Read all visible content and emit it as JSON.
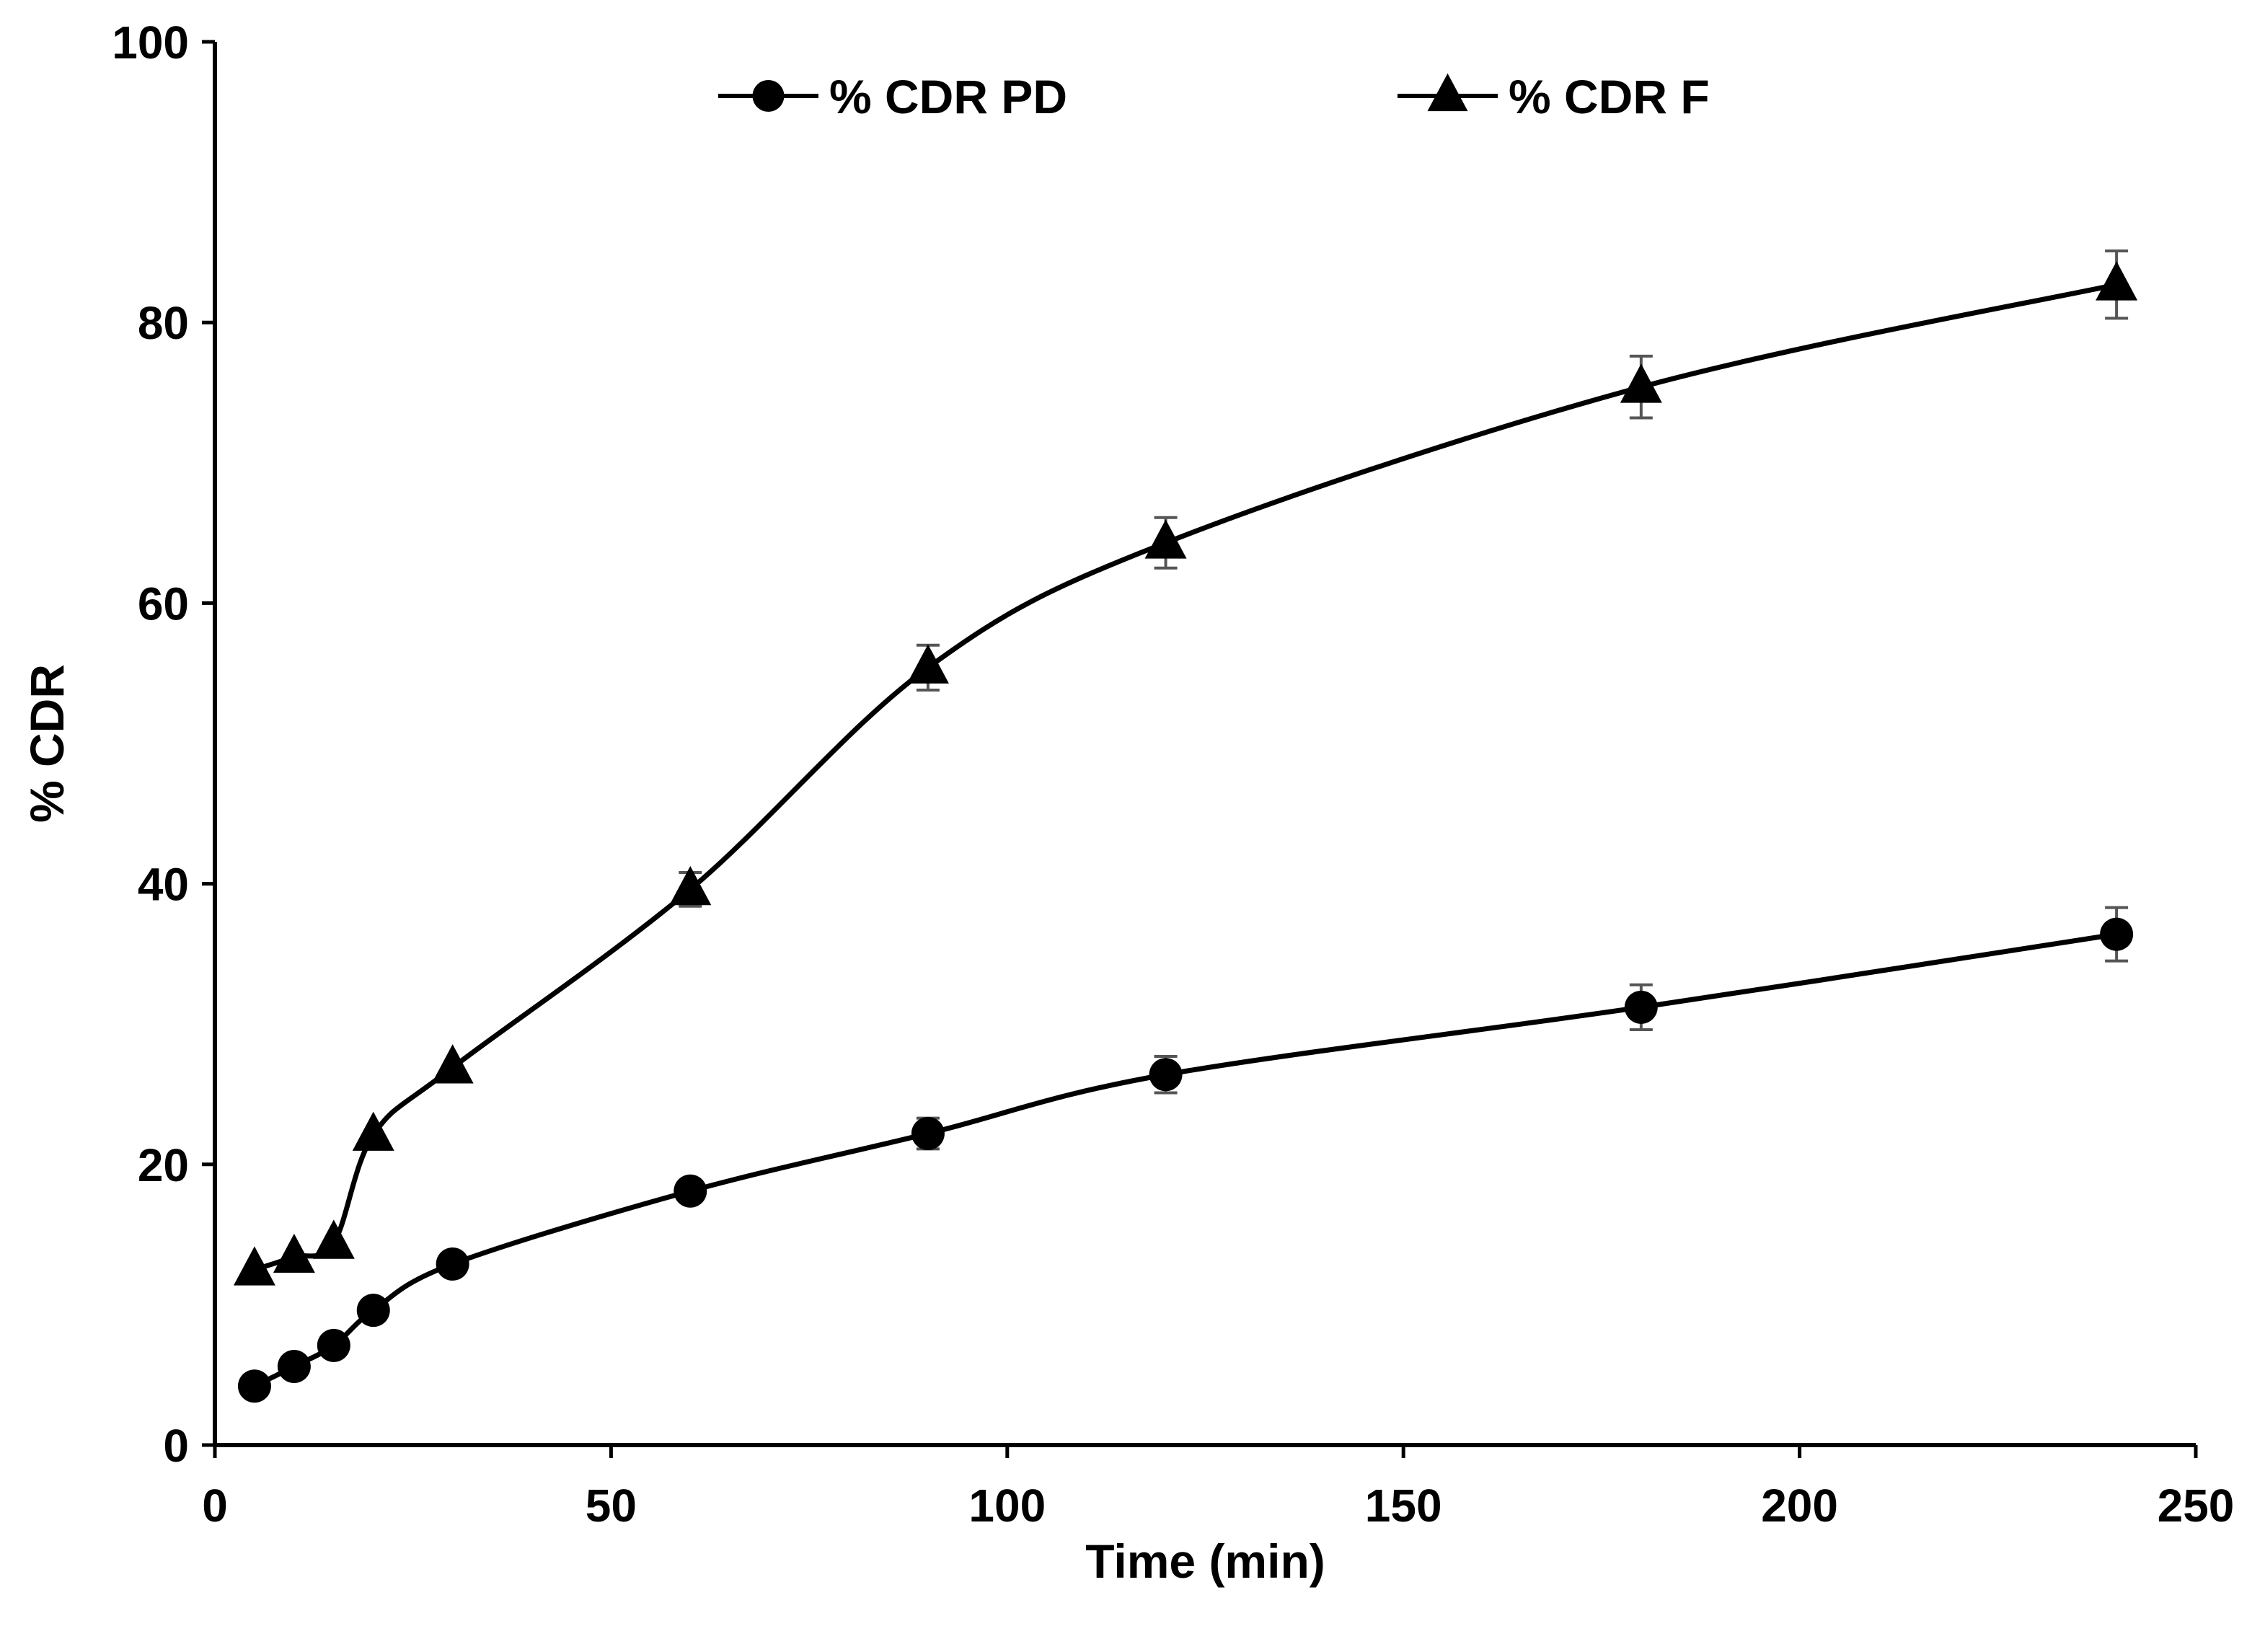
{
  "chart_data": {
    "type": "line",
    "title": "",
    "xlabel": "Time (min)",
    "ylabel": "% CDR",
    "xlim": [
      0,
      250
    ],
    "ylim": [
      0,
      100
    ],
    "xticks": [
      0,
      50,
      100,
      150,
      200,
      250
    ],
    "yticks": [
      0,
      20,
      40,
      60,
      80,
      100
    ],
    "xtick_labels": [
      "0",
      "50",
      "100",
      "150",
      "200",
      "250"
    ],
    "ytick_labels": [
      "0",
      "20",
      "40",
      "60",
      "80",
      "100"
    ],
    "grid": false,
    "legend_position": "top",
    "x": [
      5,
      10,
      15,
      20,
      30,
      60,
      90,
      120,
      180,
      240
    ],
    "series": [
      {
        "name": "% CDR PD",
        "marker": "circle",
        "color": "#000000",
        "values": [
          4.2,
          5.6,
          7.1,
          9.6,
          12.9,
          18.1,
          22.2,
          26.4,
          31.2,
          36.4
        ],
        "errors": [
          0,
          0,
          0,
          0,
          0,
          0,
          1.1,
          1.3,
          1.6,
          1.9
        ]
      },
      {
        "name": "% CDR F",
        "marker": "triangle",
        "color": "#000000",
        "values": [
          12.5,
          13.4,
          14.4,
          22.1,
          26.9,
          39.6,
          55.4,
          64.3,
          75.4,
          82.7
        ],
        "errors": [
          0,
          0,
          0,
          0,
          0,
          1.2,
          1.6,
          1.8,
          2.2,
          2.4
        ]
      }
    ]
  }
}
